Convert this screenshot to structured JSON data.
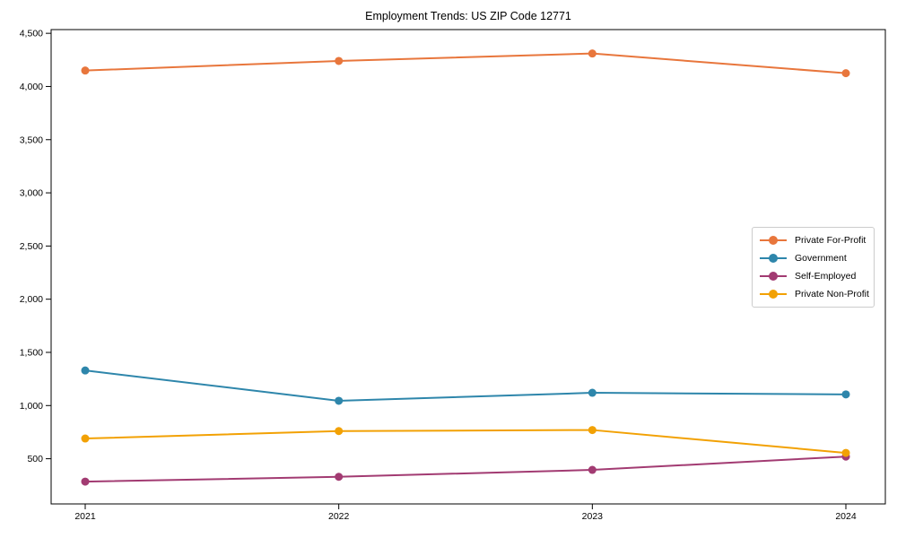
{
  "chart_data": {
    "type": "line",
    "title": "Employment Trends: US ZIP Code 12771",
    "xlabel": "",
    "ylabel": "",
    "categories": [
      "2021",
      "2022",
      "2023",
      "2024"
    ],
    "series": [
      {
        "name": "Private For-Profit",
        "color": "#E8763C",
        "values": [
          4150,
          4240,
          4310,
          4125
        ]
      },
      {
        "name": "Government",
        "color": "#2E86AB",
        "values": [
          1330,
          1045,
          1120,
          1105
        ]
      },
      {
        "name": "Self-Employed",
        "color": "#A23B72",
        "values": [
          285,
          330,
          395,
          520
        ]
      },
      {
        "name": "Private Non-Profit",
        "color": "#F2A104",
        "values": [
          690,
          760,
          770,
          555
        ]
      }
    ],
    "y_ticks": [
      500,
      1000,
      1500,
      2000,
      2500,
      3000,
      3500,
      4000,
      4500
    ],
    "y_tick_labels": [
      "500",
      "1,000",
      "1,500",
      "2,000",
      "2,500",
      "3,000",
      "3,500",
      "4,000",
      "4,500"
    ],
    "ylim": [
      75,
      4535
    ],
    "grid": false,
    "legend_position": "center right",
    "marker": "circle",
    "frame_color": "#000000",
    "background_color": "#ffffff"
  }
}
